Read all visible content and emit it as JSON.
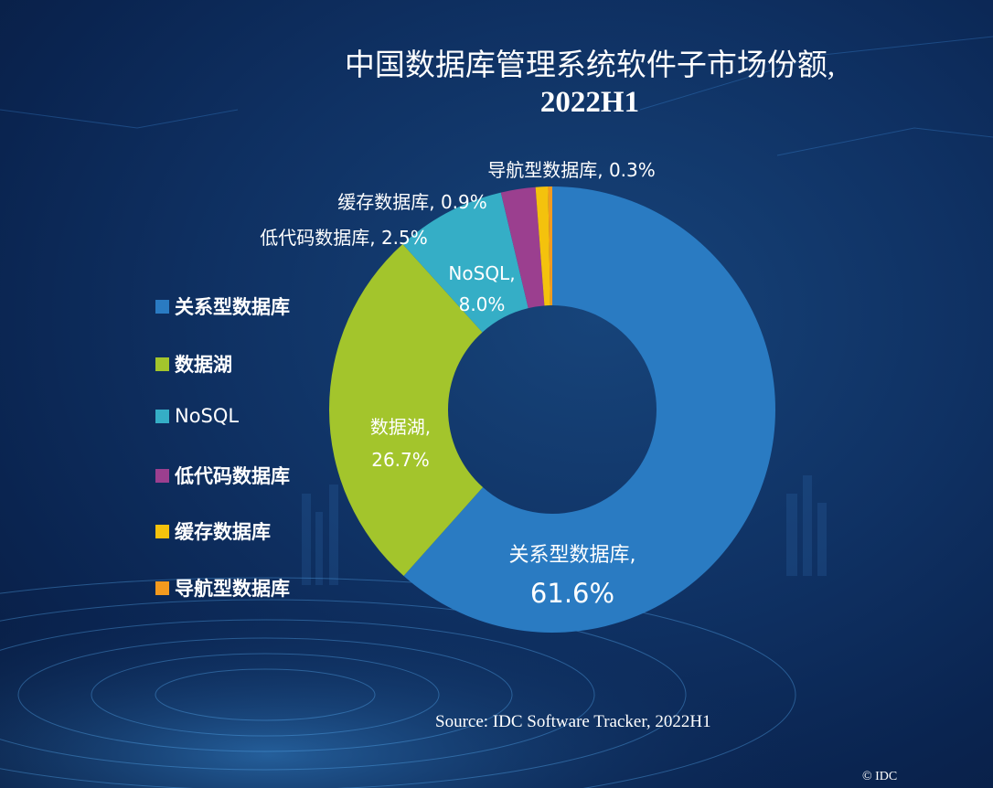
{
  "title_line1": "中国数据库管理系统软件子市场份额,",
  "title_line2": "2022H1",
  "source": "Source: IDC Software Tracker, 2022H1",
  "copyright": "© IDC",
  "legend": [
    {
      "label": "关系型数据库",
      "color": "#2a7bc2"
    },
    {
      "label": "数据湖",
      "color": "#a3c52c"
    },
    {
      "label": "NoSQL",
      "color": "#35aec6"
    },
    {
      "label": "低代码数据库",
      "color": "#9b3f8f"
    },
    {
      "label": "缓存数据库",
      "color": "#f4c20d"
    },
    {
      "label": "导航型数据库",
      "color": "#f39a1e"
    }
  ],
  "chart_data": {
    "type": "pie",
    "donut": true,
    "title": "中国数据库管理系统软件子市场份额, 2022H1",
    "slices": [
      {
        "name": "关系型数据库",
        "value": 61.6,
        "label_name": "关系型数据库,",
        "label_value": "61.6%",
        "color": "#2a7bc2"
      },
      {
        "name": "数据湖",
        "value": 26.7,
        "label_name": "数据湖,",
        "label_value": "26.7%",
        "color": "#a3c52c"
      },
      {
        "name": "NoSQL",
        "value": 8.0,
        "label_name": "NoSQL,",
        "label_value": "8.0%",
        "color": "#35aec6"
      },
      {
        "name": "低代码数据库",
        "value": 2.5,
        "label_name": "低代码数据库,",
        "label_value": "2.5%",
        "color": "#9b3f8f"
      },
      {
        "name": "缓存数据库",
        "value": 0.9,
        "label_name": "缓存数据库,",
        "label_value": "0.9%",
        "color": "#f4c20d"
      },
      {
        "name": "导航型数据库",
        "value": 0.3,
        "label_name": "导航型数据库,",
        "label_value": "0.3%",
        "color": "#f39a1e"
      }
    ]
  }
}
